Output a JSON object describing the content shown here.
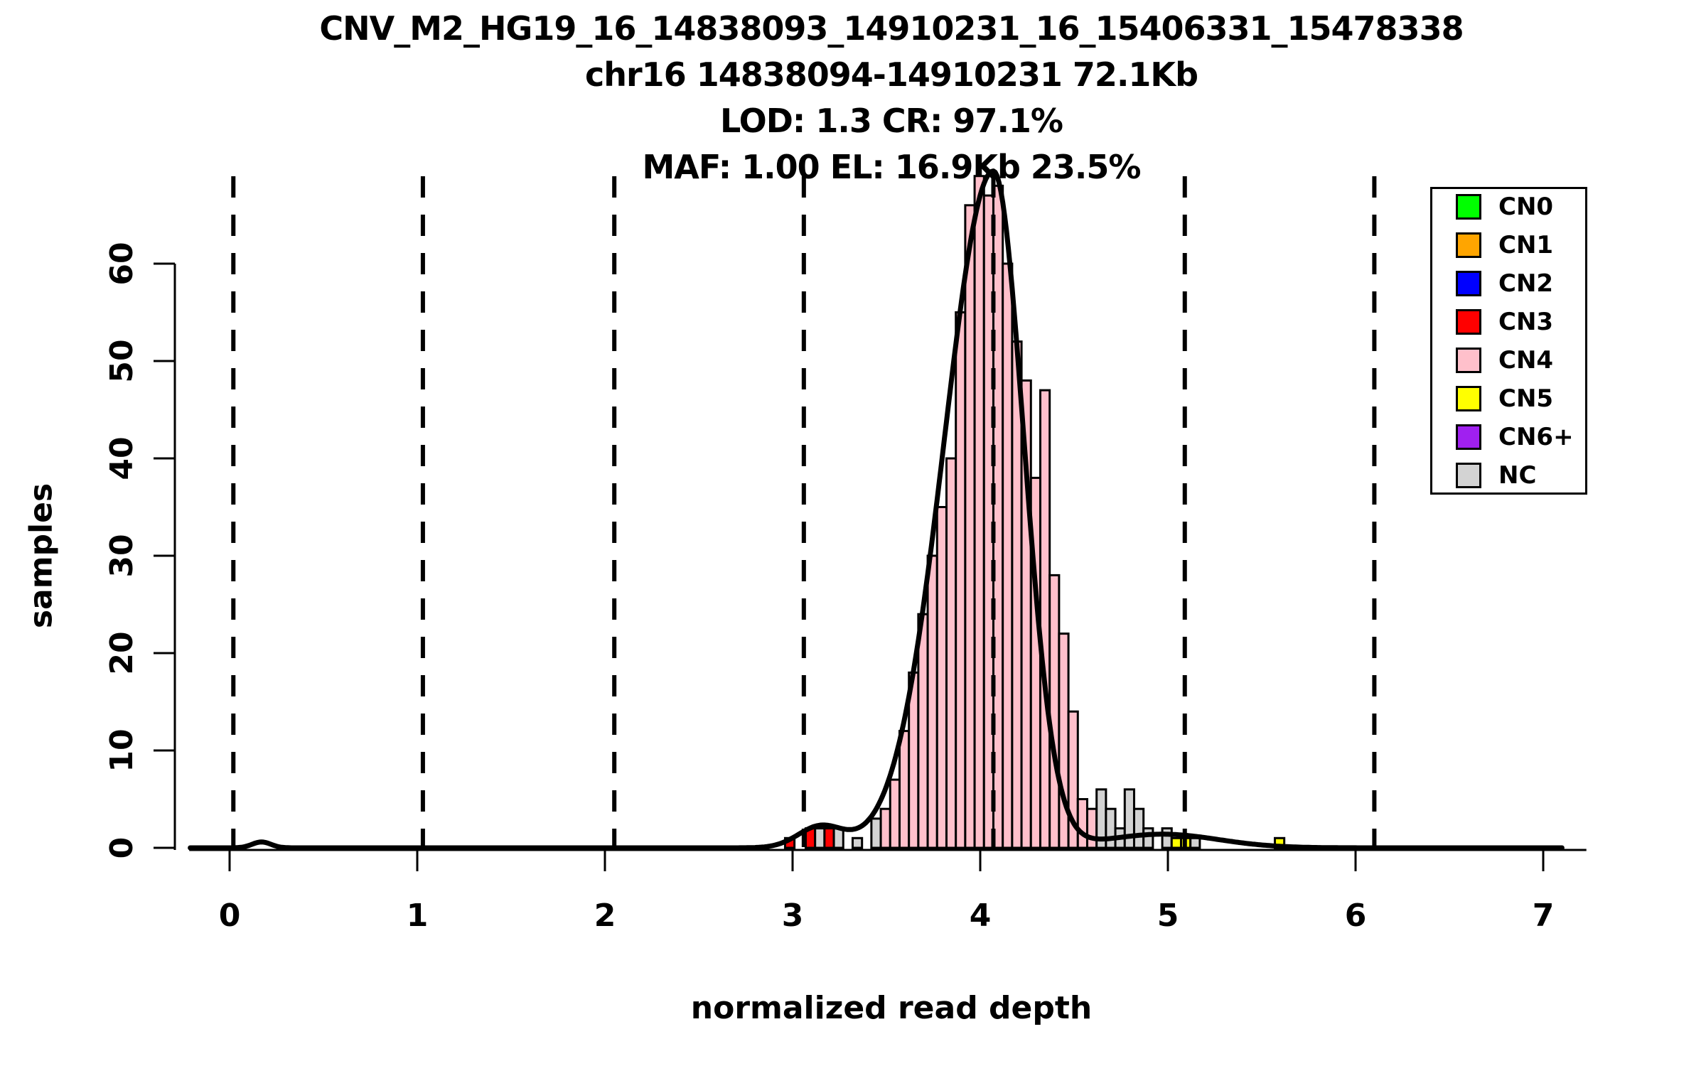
{
  "title": {
    "line1": "CNV_M2_HG19_16_14838093_14910231_16_15406331_15478338",
    "line2": "chr16 14838094-14910231 72.1Kb",
    "line3": "LOD: 1.3 CR: 97.1%",
    "line4": "MAF: 1.00 EL: 16.9Kb 23.5%"
  },
  "axes": {
    "x_label": "normalized read depth",
    "y_label": "samples"
  },
  "legend": {
    "items": [
      {
        "label": "CN0",
        "color": "#00FF00"
      },
      {
        "label": "CN1",
        "color": "#FFA500"
      },
      {
        "label": "CN2",
        "color": "#0000FF"
      },
      {
        "label": "CN3",
        "color": "#FF0000"
      },
      {
        "label": "CN4",
        "color": "#FFC0CB"
      },
      {
        "label": "CN5",
        "color": "#FFFF00"
      },
      {
        "label": "CN6+",
        "color": "#A020F0"
      },
      {
        "label": "NC",
        "color": "#D3D3D3"
      }
    ]
  },
  "chart_data": {
    "type": "bar",
    "subtype": "histogram_with_density_curve",
    "title": "CNV_M2_HG19_16_14838093_14910231_16_15406331_15478338",
    "xlabel": "normalized read depth",
    "ylabel": "samples",
    "xlim": [
      -0.22,
      7.25
    ],
    "ylim": [
      0,
      69.5
    ],
    "x_ticks": [
      0,
      1,
      2,
      3,
      4,
      5,
      6,
      7
    ],
    "y_ticks": [
      0,
      10,
      20,
      30,
      40,
      50,
      60
    ],
    "grid": false,
    "legend_position": "top-right",
    "bin_width": 0.05,
    "colors": {
      "CN0": "#00FF00",
      "CN1": "#FFA500",
      "CN2": "#0000FF",
      "CN3": "#FF0000",
      "CN4": "#FFC0CB",
      "CN5": "#FFFF00",
      "CN6+": "#A020F0",
      "NC": "#D3D3D3",
      "curve": "#000000",
      "dashed_lines": "#000000"
    },
    "dashed_cluster_means": [
      0.02,
      1.03,
      2.05,
      3.06,
      4.07,
      5.09,
      6.1
    ],
    "bars": [
      {
        "x": 2.96,
        "h": 1,
        "c": "CN3"
      },
      {
        "x": 3.07,
        "h": 2,
        "c": "CN3"
      },
      {
        "x": 3.12,
        "h": 2,
        "c": "NC"
      },
      {
        "x": 3.17,
        "h": 2,
        "c": "CN3"
      },
      {
        "x": 3.22,
        "h": 2,
        "c": "NC"
      },
      {
        "x": 3.32,
        "h": 1,
        "c": "NC"
      },
      {
        "x": 3.42,
        "h": 3,
        "c": "NC"
      },
      {
        "x": 3.47,
        "h": 4,
        "c": "CN4"
      },
      {
        "x": 3.52,
        "h": 7,
        "c": "CN4"
      },
      {
        "x": 3.57,
        "h": 12,
        "c": "CN4"
      },
      {
        "x": 3.62,
        "h": 18,
        "c": "CN4"
      },
      {
        "x": 3.67,
        "h": 24,
        "c": "CN4"
      },
      {
        "x": 3.72,
        "h": 30,
        "c": "CN4"
      },
      {
        "x": 3.77,
        "h": 35,
        "c": "CN4"
      },
      {
        "x": 3.82,
        "h": 40,
        "c": "CN4"
      },
      {
        "x": 3.87,
        "h": 55,
        "c": "CN4"
      },
      {
        "x": 3.92,
        "h": 66,
        "c": "CN4"
      },
      {
        "x": 3.97,
        "h": 69,
        "c": "CN4"
      },
      {
        "x": 4.02,
        "h": 67,
        "c": "CN4"
      },
      {
        "x": 4.07,
        "h": 68,
        "c": "CN4"
      },
      {
        "x": 4.12,
        "h": 60,
        "c": "CN4"
      },
      {
        "x": 4.17,
        "h": 52,
        "c": "CN4"
      },
      {
        "x": 4.22,
        "h": 48,
        "c": "CN4"
      },
      {
        "x": 4.27,
        "h": 38,
        "c": "CN4"
      },
      {
        "x": 4.32,
        "h": 47,
        "c": "CN4"
      },
      {
        "x": 4.37,
        "h": 28,
        "c": "CN4"
      },
      {
        "x": 4.42,
        "h": 22,
        "c": "CN4"
      },
      {
        "x": 4.47,
        "h": 14,
        "c": "CN4"
      },
      {
        "x": 4.52,
        "h": 5,
        "c": "CN4"
      },
      {
        "x": 4.57,
        "h": 4,
        "c": "CN4"
      },
      {
        "x": 4.62,
        "h": 6,
        "c": "NC"
      },
      {
        "x": 4.67,
        "h": 4,
        "c": "NC"
      },
      {
        "x": 4.72,
        "h": 2,
        "c": "NC"
      },
      {
        "x": 4.77,
        "h": 6,
        "c": "NC"
      },
      {
        "x": 4.82,
        "h": 4,
        "c": "NC"
      },
      {
        "x": 4.87,
        "h": 2,
        "c": "NC"
      },
      {
        "x": 4.97,
        "h": 2,
        "c": "NC"
      },
      {
        "x": 5.02,
        "h": 1,
        "c": "CN5"
      },
      {
        "x": 5.07,
        "h": 1,
        "c": "CN5"
      },
      {
        "x": 5.12,
        "h": 1,
        "c": "NC"
      },
      {
        "x": 5.57,
        "h": 1,
        "c": "CN5"
      }
    ],
    "density_components": [
      {
        "mu": 0.17,
        "a": 0.6,
        "sd": 0.05
      },
      {
        "mu": 3.15,
        "a": 2.2,
        "sd": 0.12
      },
      {
        "mu": 4.07,
        "a": 69.5,
        "sd_left": 0.26,
        "sd_right": 0.162
      },
      {
        "mu": 4.97,
        "a": 1.4,
        "sd": 0.3
      }
    ]
  }
}
